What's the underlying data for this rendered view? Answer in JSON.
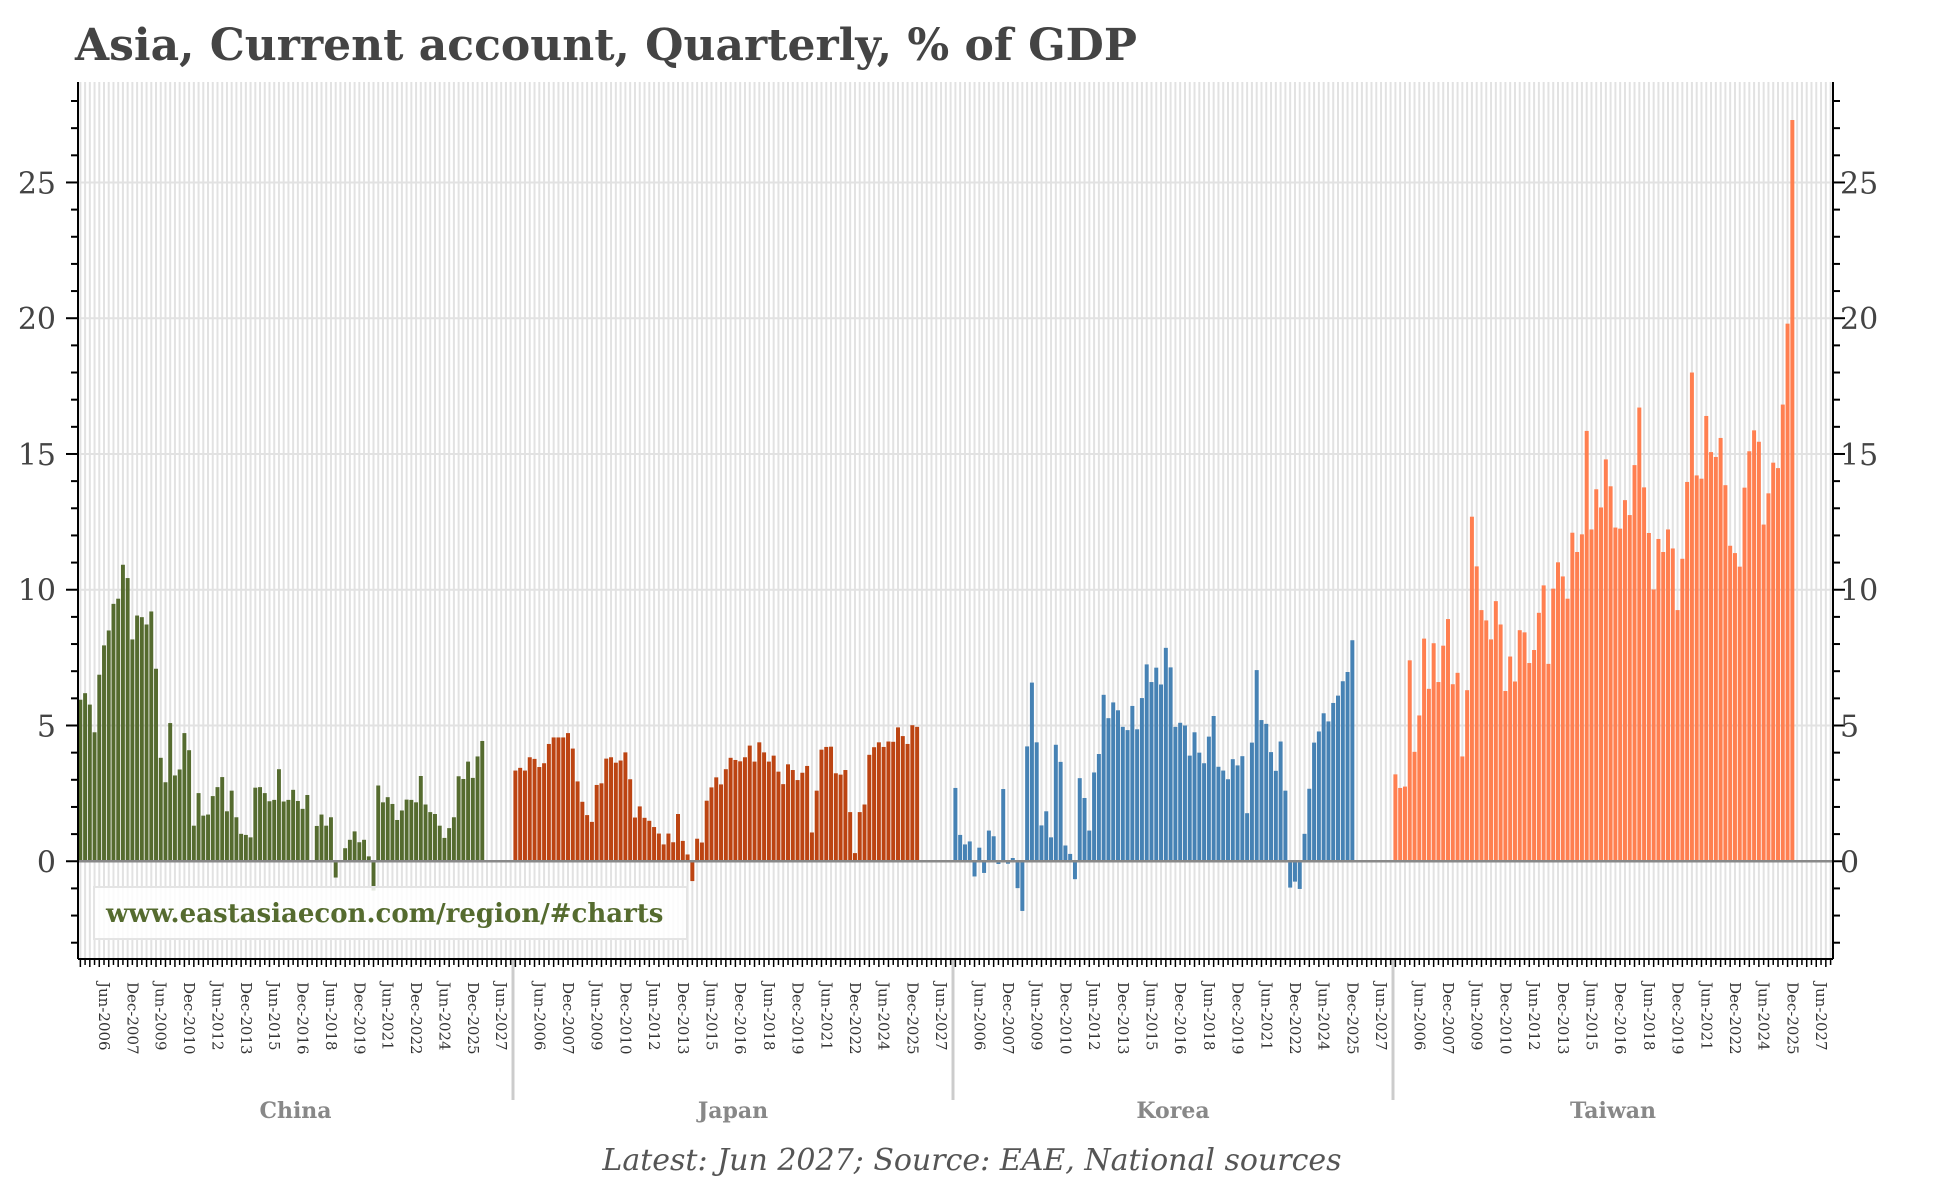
{
  "chart_data": {
    "type": "bar",
    "title": "Asia, Current account, Quarterly, % of GDP",
    "footer": "Latest: Jun 2027; Source: EAE, National sources",
    "watermark": "www.eastasiaecon.com/region/#charts",
    "ylim": [
      -3.6,
      28.7
    ],
    "yticks": [
      "0",
      "5",
      "10",
      "15",
      "20",
      "25"
    ],
    "ytick_values": [
      0,
      5,
      10,
      15,
      20,
      25
    ],
    "grid": true,
    "xtick_labels": [
      "Jun-2006",
      "Dec-2007",
      "Jun-2009",
      "Dec-2010",
      "Jun-2012",
      "Dec-2013",
      "Jun-2015",
      "Dec-2016",
      "Jun-2018",
      "Dec-2019",
      "Jun-2021",
      "Dec-2022",
      "Jun-2024",
      "Dec-2025",
      "Jun-2027"
    ],
    "panels": [
      {
        "name": "China",
        "color": "#556B2F",
        "values": [
          5.95,
          6.19,
          5.77,
          4.75,
          6.87,
          7.95,
          8.5,
          9.48,
          9.67,
          10.92,
          10.43,
          8.17,
          9.05,
          8.99,
          8.72,
          9.2,
          7.09,
          3.81,
          2.91,
          5.09,
          3.16,
          3.38,
          4.72,
          4.09,
          1.31,
          2.51,
          1.68,
          1.72,
          2.4,
          2.73,
          3.1,
          1.84,
          2.6,
          1.62,
          1.01,
          0.97,
          0.88,
          2.71,
          2.73,
          2.51,
          2.21,
          2.26,
          3.39,
          2.2,
          2.26,
          2.63,
          2.22,
          1.93,
          2.44,
          0,
          1.3,
          1.72,
          1.31,
          1.62,
          -0.6,
          0,
          0.48,
          0.79,
          1.1,
          0.7,
          0.79,
          0.18,
          -1.08,
          2.79,
          2.17,
          2.36,
          2.11,
          1.52,
          1.87,
          2.27,
          2.26,
          2.17,
          3.14,
          2.09,
          1.81,
          1.74,
          1.31,
          0.86,
          1.22,
          1.62,
          3.13,
          3.03,
          3.67,
          3.07,
          3.86,
          4.43
        ]
      },
      {
        "name": "Japan",
        "color": "#BC4412",
        "values": [
          3.34,
          3.44,
          3.34,
          3.83,
          3.77,
          3.47,
          3.61,
          4.32,
          4.56,
          4.56,
          4.56,
          4.72,
          4.15,
          2.94,
          2.19,
          1.7,
          1.45,
          2.81,
          2.87,
          3.78,
          3.83,
          3.63,
          3.71,
          4.01,
          3.02,
          1.61,
          2.02,
          1.6,
          1.49,
          1.26,
          1.02,
          0.62,
          1.02,
          0.7,
          1.74,
          0.75,
          0.25,
          -0.73,
          0.83,
          0.69,
          2.23,
          2.72,
          3.09,
          2.83,
          3.39,
          3.81,
          3.73,
          3.68,
          3.83,
          4.26,
          3.67,
          4.38,
          4.01,
          3.67,
          3.89,
          3.3,
          2.84,
          3.57,
          3.36,
          2.99,
          3.26,
          3.51,
          1.06,
          2.6,
          4.11,
          4.21,
          4.22,
          3.24,
          3.19,
          3.36,
          1.81,
          0.3,
          1.81,
          2.09,
          3.92,
          4.2,
          4.38,
          4.21,
          4.41,
          4.4,
          4.93,
          4.61,
          4.32,
          5.01,
          4.95
        ]
      },
      {
        "name": "Korea",
        "color": "#4682B4",
        "values": [
          2.7,
          0.97,
          0.62,
          0.73,
          -0.56,
          0.5,
          -0.43,
          1.13,
          0.92,
          -0.1,
          2.66,
          -0.09,
          0.12,
          -0.99,
          -1.83,
          4.23,
          6.58,
          4.38,
          1.32,
          1.84,
          0.88,
          4.29,
          3.66,
          0.58,
          0.27,
          -0.66,
          3.06,
          2.33,
          1.13,
          3.27,
          3.95,
          6.13,
          5.27,
          5.85,
          5.56,
          4.95,
          4.83,
          5.72,
          4.86,
          6.01,
          7.25,
          6.6,
          7.13,
          6.51,
          7.86,
          7.14,
          4.95,
          5.1,
          5.0,
          3.89,
          4.75,
          4.0,
          3.61,
          4.59,
          5.35,
          3.48,
          3.34,
          3.02,
          3.76,
          3.53,
          3.87,
          1.77,
          4.37,
          7.04,
          5.2,
          5.06,
          4.02,
          3.33,
          4.41,
          2.6,
          -0.97,
          -0.75,
          -1.02,
          1.01,
          2.67,
          4.37,
          4.78,
          5.45,
          5.15,
          5.83,
          6.1,
          6.63,
          6.97,
          8.14
        ]
      },
      {
        "name": "Taiwan",
        "color": "#FF7F50",
        "values": [
          3.2,
          2.7,
          2.75,
          7.4,
          4.03,
          5.37,
          8.2,
          6.35,
          8.03,
          6.6,
          7.94,
          8.92,
          6.52,
          6.94,
          3.86,
          6.3,
          12.69,
          10.86,
          9.25,
          8.87,
          8.17,
          9.58,
          8.72,
          6.27,
          7.54,
          6.62,
          8.51,
          8.43,
          7.3,
          7.78,
          9.15,
          10.16,
          7.27,
          10.04,
          11.01,
          10.49,
          9.67,
          12.1,
          11.39,
          12.04,
          15.85,
          12.22,
          13.7,
          13.03,
          14.8,
          13.81,
          12.29,
          12.25,
          13.3,
          12.75,
          14.59,
          16.71,
          13.77,
          12.09,
          10.01,
          11.87,
          11.39,
          12.22,
          11.52,
          9.25,
          11.14,
          13.97,
          18.0,
          14.21,
          14.09,
          16.4,
          15.07,
          14.89,
          15.59,
          13.85,
          11.62,
          11.35,
          10.85,
          13.76,
          15.1,
          15.87,
          15.45,
          12.4,
          13.55,
          14.68,
          14.48,
          16.82,
          19.8,
          27.3
        ]
      }
    ]
  }
}
